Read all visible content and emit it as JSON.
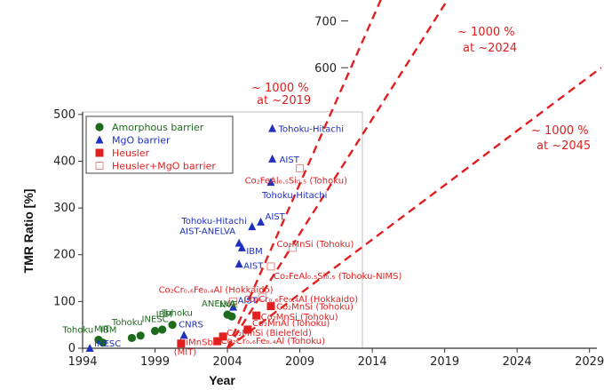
{
  "chart_data": {
    "type": "scatter",
    "xlabel": "Year",
    "ylabel": "TMR Ratio [%]",
    "xlim": [
      1994,
      2030
    ],
    "ylim": [
      0,
      760
    ],
    "x_ticks": [
      1994,
      1999,
      2004,
      2009,
      2014,
      2019,
      2024,
      2029
    ],
    "y_ticks_lower": [
      0,
      100,
      200,
      300,
      400,
      500
    ],
    "y_ticks_upper": [
      600,
      700
    ],
    "grid": false,
    "legend_position": "top-left",
    "legend": [
      {
        "name": "Amorphous barrier",
        "marker": "circle",
        "color": "#1e6b1e"
      },
      {
        "name": "MgO barrier",
        "marker": "triangle",
        "color": "#1f2fbf"
      },
      {
        "name": "Heusler",
        "marker": "square",
        "color": "#e02020"
      },
      {
        "name": "Heusler+MgO barrier",
        "marker": "open-square",
        "color": "#e88888"
      }
    ],
    "series": [
      {
        "name": "Amorphous barrier",
        "points": [
          {
            "x": 1995.1,
            "y": 18,
            "label": "MIT"
          },
          {
            "x": 1995.4,
            "y": 12,
            "label": "Tohoku"
          },
          {
            "x": 1997.4,
            "y": 22,
            "label": "IBM"
          },
          {
            "x": 1998.0,
            "y": 27,
            "label": "Tohoku"
          },
          {
            "x": 1999.0,
            "y": 37,
            "label": "INESC"
          },
          {
            "x": 1999.5,
            "y": 40,
            "label": "IBM"
          },
          {
            "x": 2000.2,
            "y": 50,
            "label": "Tohoku"
          },
          {
            "x": 2004.0,
            "y": 72,
            "label": "ANELVA"
          },
          {
            "x": 2004.3,
            "y": 68,
            "label": "NVE"
          }
        ]
      },
      {
        "name": "MgO barrier",
        "points": [
          {
            "x": 1994.5,
            "y": 0,
            "label": "INESC"
          },
          {
            "x": 2001.0,
            "y": 28,
            "label": "CNRS"
          },
          {
            "x": 2004.4,
            "y": 88,
            "label": "AIST"
          },
          {
            "x": 2004.8,
            "y": 180,
            "label": "AIST"
          },
          {
            "x": 2004.8,
            "y": 225,
            "label": "AIST-ANELVA"
          },
          {
            "x": 2005.0,
            "y": 215,
            "label": "IBM"
          },
          {
            "x": 2005.7,
            "y": 260,
            "label": "Tohoku-Hitachi"
          },
          {
            "x": 2006.3,
            "y": 270,
            "label": "AIST"
          },
          {
            "x": 2007.0,
            "y": 355,
            "label": "Tohoku-Hitachi"
          },
          {
            "x": 2007.1,
            "y": 405,
            "label": "AIST"
          },
          {
            "x": 2007.1,
            "y": 470,
            "label": "Tohoku-Hitachi"
          }
        ]
      },
      {
        "name": "Heusler",
        "points": [
          {
            "x": 2000.8,
            "y": 10,
            "label": "NiMnSb"
          },
          {
            "x": 2003.3,
            "y": 15,
            "label": "Co₂Cr₀.₆Fe₀.₄Al (Tohoku)"
          },
          {
            "x": 2003.7,
            "y": 25,
            "label": "Co₂MnSi (Bielefeld)"
          },
          {
            "x": 2005.4,
            "y": 40,
            "label": "Co₂MnAl (Tohoku)"
          },
          {
            "x": 2006.0,
            "y": 70,
            "label": "Co₂MnSi (Tohoku)"
          },
          {
            "x": 2007.0,
            "y": 90,
            "label": "Co₂MnSi (Tohoku)"
          }
        ]
      },
      {
        "name": "Heusler+MgO barrier",
        "points": [
          {
            "x": 2004.4,
            "y": 100,
            "label": "Co₂Cr₀.₆Fe₀.₄Al (Hokkaido)"
          },
          {
            "x": 2006.4,
            "y": 110,
            "label": "Co₂Cr₀.₆Fe₀.₄Al (Hokkaido)"
          },
          {
            "x": 2007.0,
            "y": 175,
            "label": "Co₂FeAl₀.₅Si₀.₅ (Tohoku-NIMS)"
          },
          {
            "x": 2008.5,
            "y": 215,
            "label": "Co₂MnSi (Tohoku)"
          },
          {
            "x": 2009.0,
            "y": 385,
            "label": "Co₂FeAl₀.₅Si₀.₅ (Tohoku)"
          }
        ]
      }
    ],
    "extra_labels": [
      {
        "text": "(MIT)",
        "x": 2000.3,
        "y": -22,
        "color": "#e02020"
      }
    ],
    "projections": [
      {
        "x": [
          2004.0,
          2014.8
        ],
        "y": [
          0,
          760
        ],
        "label": "~ 1000 %",
        "label2": "at ~2019",
        "color": "#e02020"
      },
      {
        "x": [
          2004.0,
          2019.5
        ],
        "y": [
          0,
          760
        ],
        "label": "~ 1000 %",
        "label2": "at ~2024",
        "color": "#e02020"
      },
      {
        "x": [
          2004.0,
          2029.8
        ],
        "y": [
          0,
          600
        ],
        "label": "~ 1000 %",
        "label2": "at ~2045",
        "color": "#e02020"
      }
    ]
  }
}
